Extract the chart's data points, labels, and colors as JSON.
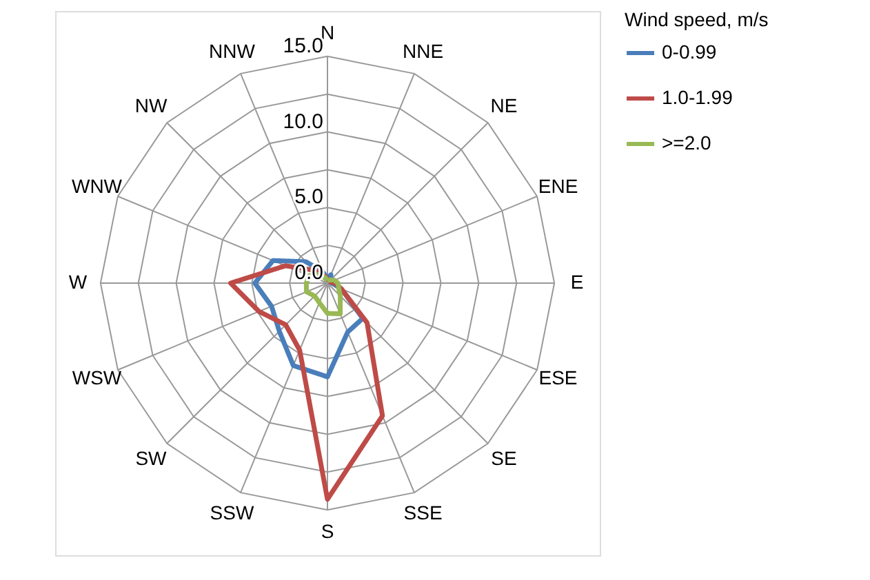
{
  "chart_data": {
    "type": "radar",
    "legend_title": "Wind speed, m/s",
    "categories": [
      "N",
      "NNE",
      "NE",
      "ENE",
      "E",
      "ESE",
      "SE",
      "SSE",
      "S",
      "SSW",
      "SW",
      "WSW",
      "W",
      "WNW",
      "NW",
      "NNW"
    ],
    "ylim": [
      0,
      15
    ],
    "yticks": [
      {
        "value": 0,
        "label": "0.0"
      },
      {
        "value": 5,
        "label": "5.0"
      },
      {
        "value": 10,
        "label": "10.0"
      },
      {
        "value": 15,
        "label": "15.0"
      }
    ],
    "grid": true,
    "legend": "right",
    "marker": "none",
    "line_style": "solid",
    "series": [
      {
        "name": "0-0.99",
        "color": "#4a7ebb",
        "values": [
          0.3,
          0.6,
          0.3,
          0.2,
          0.3,
          1.0,
          3.3,
          3.5,
          6.2,
          5.9,
          4.5,
          4.0,
          4.8,
          3.9,
          2.0,
          0.8
        ]
      },
      {
        "name": "1.0-1.99",
        "color": "#be4b48",
        "values": [
          0.3,
          0.2,
          0.2,
          0.2,
          0.5,
          1.0,
          3.7,
          9.5,
          14.3,
          4.8,
          3.9,
          4.9,
          6.4,
          3.0,
          1.2,
          0.5
        ]
      },
      {
        "name": ">=2.0",
        "color": "#98b954",
        "values": [
          0.2,
          0.2,
          0.3,
          0.5,
          0.7,
          0.8,
          1.2,
          2.2,
          2.0,
          1.4,
          1.2,
          1.5,
          1.4,
          1.3,
          0.8,
          0.4
        ]
      }
    ]
  }
}
